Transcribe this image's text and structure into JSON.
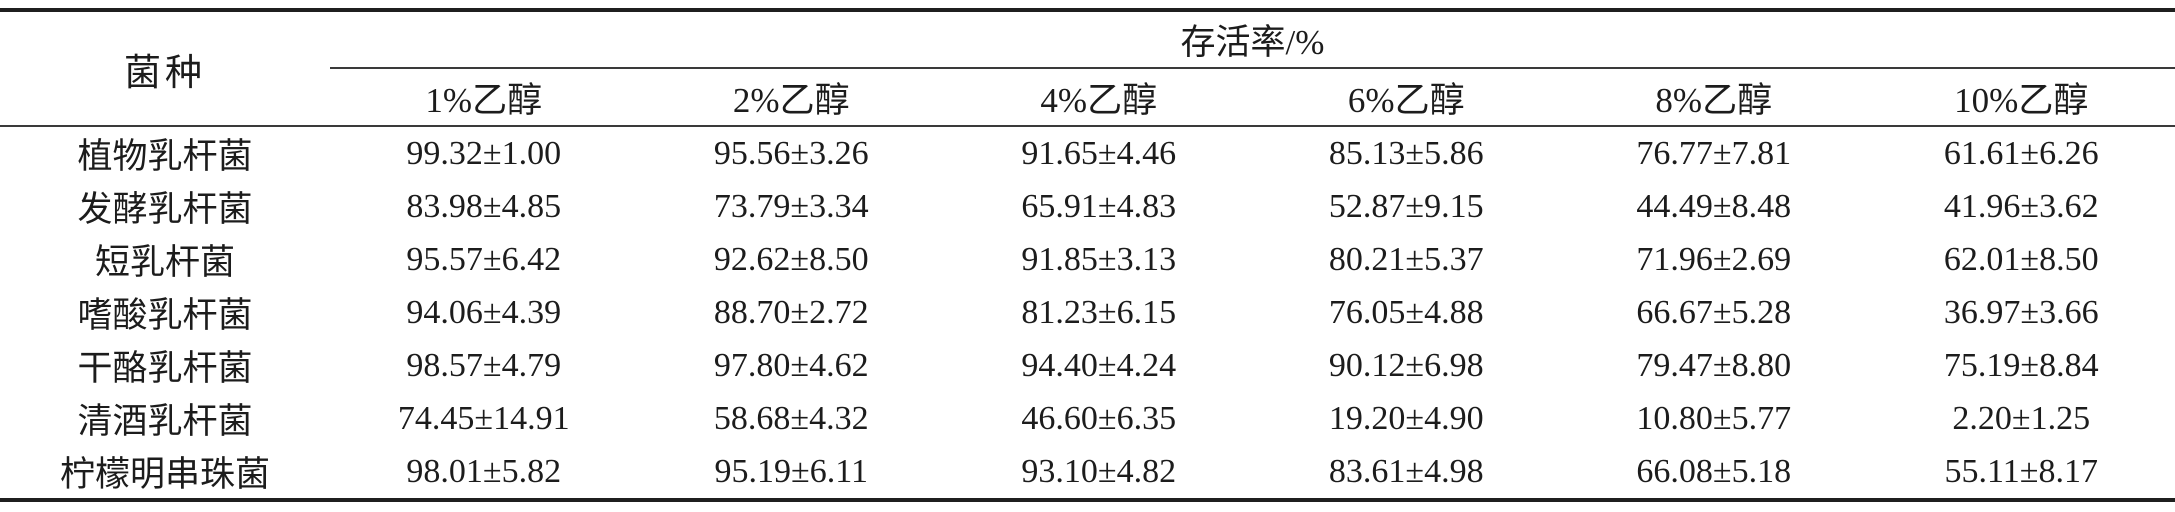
{
  "table": {
    "strain_header": "菌种",
    "survival_header": "存活率/%",
    "columns": [
      "1%乙醇",
      "2%乙醇",
      "4%乙醇",
      "6%乙醇",
      "8%乙醇",
      "10%乙醇"
    ],
    "rows": [
      {
        "name": "植物乳杆菌",
        "values": [
          "99.32±1.00",
          "95.56±3.26",
          "91.65±4.46",
          "85.13±5.86",
          "76.77±7.81",
          "61.61±6.26"
        ]
      },
      {
        "name": "发酵乳杆菌",
        "values": [
          "83.98±4.85",
          "73.79±3.34",
          "65.91±4.83",
          "52.87±9.15",
          "44.49±8.48",
          "41.96±3.62"
        ]
      },
      {
        "name": "短乳杆菌",
        "values": [
          "95.57±6.42",
          "92.62±8.50",
          "91.85±3.13",
          "80.21±5.37",
          "71.96±2.69",
          "62.01±8.50"
        ]
      },
      {
        "name": "嗜酸乳杆菌",
        "values": [
          "94.06±4.39",
          "88.70±2.72",
          "81.23±6.15",
          "76.05±4.88",
          "66.67±5.28",
          "36.97±3.66"
        ]
      },
      {
        "name": "干酪乳杆菌",
        "values": [
          "98.57±4.79",
          "97.80±4.62",
          "94.40±4.24",
          "90.12±6.98",
          "79.47±8.80",
          "75.19±8.84"
        ]
      },
      {
        "name": "清酒乳杆菌",
        "values": [
          "74.45±14.91",
          "58.68±4.32",
          "46.60±6.35",
          "19.20±4.90",
          "10.80±5.77",
          "2.20±1.25"
        ]
      },
      {
        "name": "柠檬明串珠菌",
        "values": [
          "98.01±5.82",
          "95.19±6.11",
          "93.10±4.82",
          "83.61±4.98",
          "66.08±5.18",
          "55.11±8.17"
        ]
      }
    ]
  },
  "colors": {
    "heavy_rule": "#1f1f1f",
    "thin_rule": "#3a3a3a",
    "text": "#1c1c1c",
    "background": "#ffffff"
  }
}
